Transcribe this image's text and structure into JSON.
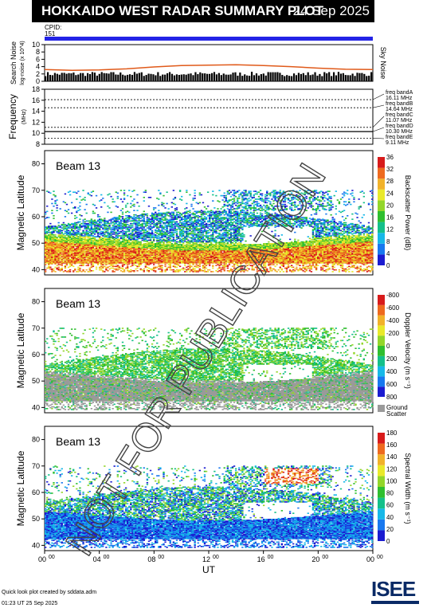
{
  "header": {
    "title": "HOKKAIDO WEST RADAR SUMMARY PLOT",
    "date": "24 Sep 2025"
  },
  "cpid": {
    "label": "CPID:",
    "value": "151"
  },
  "watermark": "NOT FOR PUBLICATION",
  "footer": {
    "credit": "Quick look plot created by sddata.adm",
    "timestamp": "01:23 UT 25 Sep 2025"
  },
  "logo": "ISEE",
  "colors": {
    "blue_bar": "#2323e6",
    "sky_noise": "#e05a1a"
  },
  "chart_data": [
    {
      "type": "line",
      "ylabel": "Search Noise",
      "ylabel_sub": "log-noise (x 10^4)",
      "right_label": "Sky Noise",
      "ylim": [
        0,
        10
      ],
      "yticks": [
        0,
        2,
        4,
        6,
        8,
        10
      ],
      "series": [
        {
          "name": "Sky Noise",
          "x": [
            0,
            2,
            4,
            6,
            8,
            10,
            12,
            14,
            16,
            18,
            20,
            22,
            24
          ],
          "values": [
            3.2,
            3.0,
            3.1,
            3.4,
            3.9,
            4.3,
            4.4,
            4.5,
            4.3,
            4.0,
            3.6,
            3.3,
            3.2
          ]
        }
      ]
    },
    {
      "type": "line",
      "ylabel": "Frequency",
      "ylabel_sub": "(MHz)",
      "ylim": [
        8,
        18
      ],
      "yticks": [
        8,
        10,
        12,
        14,
        16,
        18
      ],
      "bands": [
        {
          "name": "freq bandA",
          "mhz": "16.11 MHz",
          "value": 16.11
        },
        {
          "name": "freq bandB",
          "mhz": "14.64 MHz",
          "value": 14.64
        },
        {
          "name": "freq bandC",
          "mhz": "11.07 MHz",
          "value": 11.07
        },
        {
          "name": "freq bandD",
          "mhz": "10.30 MHz",
          "value": 10.3
        },
        {
          "name": "freq bandE",
          "mhz": "9.11 MHz",
          "value": 9.11
        }
      ]
    },
    {
      "type": "heatmap",
      "title": "Beam 13",
      "ylabel": "Magnetic Latitude",
      "ylim": [
        38,
        85
      ],
      "yticks": [
        40,
        50,
        60,
        70,
        80
      ],
      "colorbar": {
        "label": "Backscatter Power (dB)",
        "ticks": [
          "0",
          "4",
          "8",
          "12",
          "16",
          "20",
          "24",
          "28",
          "32",
          "36"
        ],
        "colors": [
          "#1b1bd0",
          "#1878ef",
          "#17b8e8",
          "#14c08a",
          "#2fbf2f",
          "#93d62a",
          "#e9e92a",
          "#f1b22a",
          "#ee6a1f",
          "#d81b1b"
        ]
      }
    },
    {
      "type": "heatmap",
      "title": "Beam 13",
      "ylabel": "Magnetic Latitude",
      "ylim": [
        38,
        85
      ],
      "yticks": [
        40,
        50,
        60,
        70,
        80
      ],
      "colorbar": {
        "label": "Doppler Velocity (m s⁻¹)",
        "ticks": [
          "800",
          "600",
          "400",
          "200",
          "0",
          "-200",
          "-400",
          "-600",
          "-800"
        ],
        "colors": [
          "#1b1bd0",
          "#1878ef",
          "#17b8e8",
          "#14c08a",
          "#2fbf2f",
          "#93d62a",
          "#e9e92a",
          "#f1b22a",
          "#ee6a1f",
          "#d81b1b"
        ],
        "ground_scatter_label": [
          "Ground",
          "Scatter"
        ]
      }
    },
    {
      "type": "heatmap",
      "title": "Beam 13",
      "ylabel": "Magnetic Latitude",
      "xlabel": "UT",
      "ylim": [
        38,
        85
      ],
      "yticks": [
        40,
        50,
        60,
        70,
        80
      ],
      "xticks": [
        "00",
        "04",
        "08",
        "12",
        "16",
        "20",
        "00"
      ],
      "xtick_sup": "00",
      "colorbar": {
        "label": "Spectral Width (m s⁻¹)",
        "ticks": [
          "0",
          "20",
          "40",
          "60",
          "80",
          "100",
          "120",
          "140",
          "160",
          "180"
        ],
        "colors": [
          "#1b1bd0",
          "#1878ef",
          "#17b8e8",
          "#14c08a",
          "#2fbf2f",
          "#93d62a",
          "#e9e92a",
          "#f1b22a",
          "#ee6a1f",
          "#d81b1b"
        ]
      }
    }
  ]
}
